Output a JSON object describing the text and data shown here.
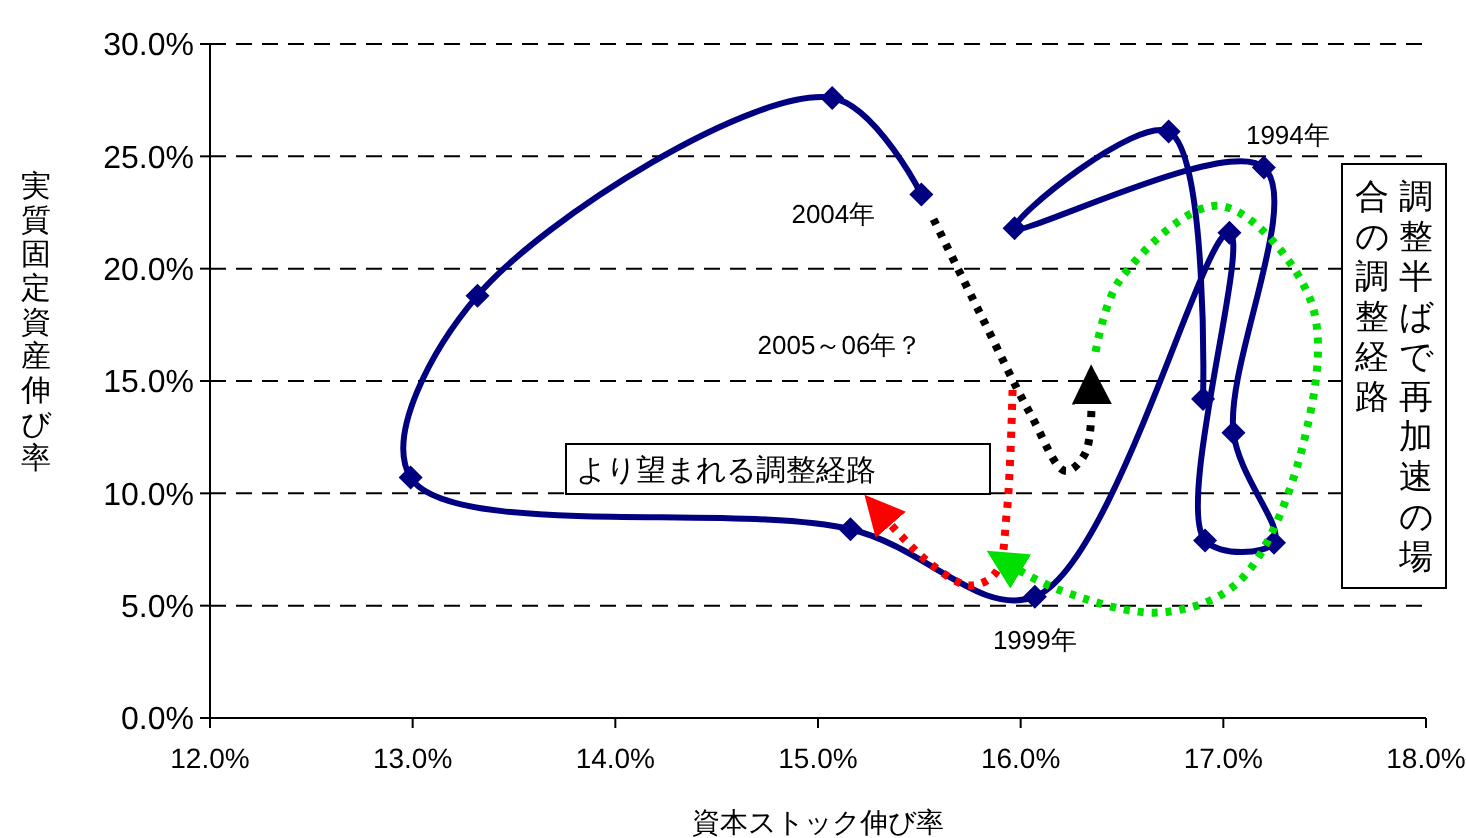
{
  "chart_data": {
    "type": "line",
    "xlabel": "資本ストック伸び率",
    "ylabel": "実質固定資産伸び率",
    "xlim": [
      12,
      18
    ],
    "ylim": [
      0,
      30
    ],
    "xticks": [
      {
        "value": 12,
        "label": "12.0%"
      },
      {
        "value": 13,
        "label": "13.0%"
      },
      {
        "value": 14,
        "label": "14.0%"
      },
      {
        "value": 15,
        "label": "15.0%"
      },
      {
        "value": 16,
        "label": "16.0%"
      },
      {
        "value": 17,
        "label": "17.0%"
      },
      {
        "value": 18,
        "label": "18.0%"
      }
    ],
    "yticks": [
      {
        "value": 0,
        "label": "0.0%"
      },
      {
        "value": 5,
        "label": "5.0%"
      },
      {
        "value": 10,
        "label": "10.0%"
      },
      {
        "value": 15,
        "label": "15.0%"
      },
      {
        "value": 20,
        "label": "20.0%"
      },
      {
        "value": 25,
        "label": "25.0%"
      },
      {
        "value": 30,
        "label": "30.0%"
      }
    ],
    "grid": "y",
    "marker": "diamond",
    "line_style": "solid",
    "series": [
      {
        "color": "#000080",
        "x": [
          16.9,
          16.73,
          15.97,
          17.2,
          17.05,
          17.25,
          16.91,
          17.03,
          16.07,
          15.16,
          12.99,
          13.32,
          15.07,
          15.51
        ],
        "values": [
          14.2,
          26.1,
          21.8,
          24.5,
          12.7,
          7.8,
          7.9,
          21.6,
          5.4,
          8.4,
          10.7,
          18.8,
          27.6,
          23.3
        ]
      },
      {
        "color": "#000000",
        "line_style": "dotted",
        "marker": "none",
        "x": [
          15.57,
          15.8,
          16.05,
          16.22,
          16.32,
          16.35
        ],
        "values": [
          22.2,
          18,
          13.5,
          11,
          11.8,
          14.5
        ]
      },
      {
        "color": "#ff0000",
        "line_style": "dotted",
        "marker": "none",
        "x": [
          15.96,
          15.93,
          15.88,
          15.75,
          15.55,
          15.32
        ],
        "values": [
          14.6,
          9,
          6.5,
          5.9,
          6.9,
          9
        ]
      },
      {
        "color": "#00e000",
        "line_style": "dotted",
        "marker": "none",
        "x": [
          16.37,
          16.49,
          16.98,
          17.43,
          17.4,
          17.08,
          16.69,
          16.19,
          15.95
        ],
        "values": [
          16.3,
          19.5,
          22.8,
          18.6,
          12.4,
          6.1,
          4.7,
          5.7,
          6.8
        ]
      }
    ],
    "annotations": [
      {
        "text": "1994年",
        "x": 17.2,
        "y": 24.5
      },
      {
        "text": "1999年",
        "x": 16.07,
        "y": 5.4
      },
      {
        "text": "2004年",
        "x": 15.51,
        "y": 23.3
      },
      "2005～06年？",
      "より望まれる調整経路",
      "調整半ばで再加速の場",
      "合の調整経路"
    ]
  }
}
